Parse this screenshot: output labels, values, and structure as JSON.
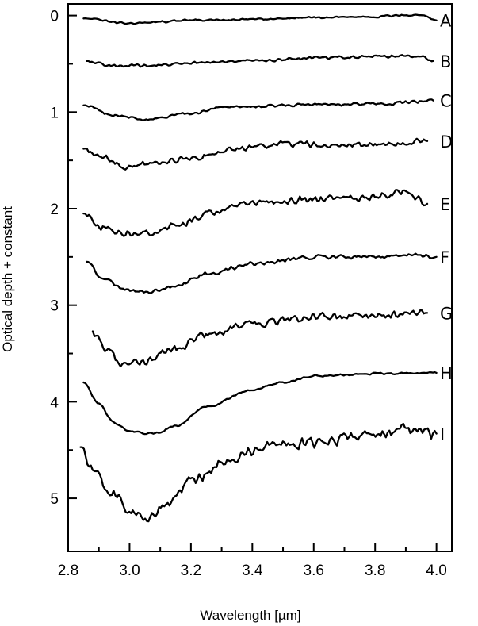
{
  "chart_data": {
    "type": "line",
    "title": "",
    "xlabel": "Wavelength [µm]",
    "ylabel": "Optical depth + constant",
    "xlim": [
      2.8,
      4.05
    ],
    "ylim": [
      5.55,
      -0.12
    ],
    "y_inverted": true,
    "x_ticks": [
      2.8,
      3.0,
      3.2,
      3.4,
      3.6,
      3.8,
      4.0
    ],
    "x_tick_labels": [
      "2.8",
      "3.0",
      "3.2",
      "3.4",
      "3.6",
      "3.8",
      "4.0"
    ],
    "y_ticks": [
      0,
      1,
      2,
      3,
      4,
      5
    ],
    "y_tick_labels": [
      "0",
      "1",
      "2",
      "3",
      "4",
      "5"
    ],
    "grid": false,
    "legend": "none",
    "series": [
      {
        "name": "A",
        "noise": 0.012,
        "points": [
          [
            2.85,
            0.03
          ],
          [
            3.0,
            0.08
          ],
          [
            3.2,
            0.05
          ],
          [
            3.4,
            0.04
          ],
          [
            3.6,
            0.02
          ],
          [
            3.8,
            0.01
          ],
          [
            3.95,
            -0.01
          ],
          [
            4.0,
            0.05
          ]
        ]
      },
      {
        "name": "B",
        "noise": 0.018,
        "points": [
          [
            2.86,
            0.47
          ],
          [
            2.95,
            0.52
          ],
          [
            3.05,
            0.52
          ],
          [
            3.2,
            0.49
          ],
          [
            3.4,
            0.47
          ],
          [
            3.6,
            0.44
          ],
          [
            3.8,
            0.42
          ],
          [
            3.95,
            0.42
          ],
          [
            3.99,
            0.47
          ]
        ]
      },
      {
        "name": "C",
        "noise": 0.018,
        "points": [
          [
            2.85,
            0.93
          ],
          [
            2.95,
            1.03
          ],
          [
            3.05,
            1.08
          ],
          [
            3.2,
            1.01
          ],
          [
            3.3,
            0.95
          ],
          [
            3.5,
            0.93
          ],
          [
            3.7,
            0.92
          ],
          [
            3.85,
            0.91
          ],
          [
            3.99,
            0.88
          ]
        ]
      },
      {
        "name": "D",
        "noise": 0.035,
        "points": [
          [
            2.85,
            1.38
          ],
          [
            2.9,
            1.45
          ],
          [
            3.0,
            1.57
          ],
          [
            3.08,
            1.53
          ],
          [
            3.2,
            1.47
          ],
          [
            3.35,
            1.38
          ],
          [
            3.5,
            1.33
          ],
          [
            3.7,
            1.34
          ],
          [
            3.85,
            1.33
          ],
          [
            3.97,
            1.3
          ]
        ]
      },
      {
        "name": "E",
        "noise": 0.045,
        "points": [
          [
            2.85,
            2.05
          ],
          [
            2.9,
            2.18
          ],
          [
            2.95,
            2.25
          ],
          [
            3.05,
            2.25
          ],
          [
            3.15,
            2.18
          ],
          [
            3.25,
            2.05
          ],
          [
            3.4,
            1.93
          ],
          [
            3.6,
            1.9
          ],
          [
            3.8,
            1.88
          ],
          [
            3.9,
            1.82
          ],
          [
            3.97,
            1.95
          ]
        ]
      },
      {
        "name": "F",
        "noise": 0.025,
        "points": [
          [
            2.86,
            2.55
          ],
          [
            2.92,
            2.75
          ],
          [
            3.0,
            2.85
          ],
          [
            3.08,
            2.85
          ],
          [
            3.15,
            2.8
          ],
          [
            3.25,
            2.68
          ],
          [
            3.4,
            2.57
          ],
          [
            3.6,
            2.5
          ],
          [
            3.8,
            2.5
          ],
          [
            3.95,
            2.48
          ],
          [
            4.0,
            2.5
          ]
        ]
      },
      {
        "name": "G",
        "noise": 0.05,
        "points": [
          [
            2.88,
            3.27
          ],
          [
            2.93,
            3.47
          ],
          [
            2.98,
            3.63
          ],
          [
            3.05,
            3.58
          ],
          [
            3.15,
            3.45
          ],
          [
            3.25,
            3.3
          ],
          [
            3.4,
            3.2
          ],
          [
            3.6,
            3.12
          ],
          [
            3.8,
            3.1
          ],
          [
            3.97,
            3.08
          ]
        ]
      },
      {
        "name": "H",
        "noise": 0.012,
        "points": [
          [
            2.85,
            3.8
          ],
          [
            2.9,
            4.02
          ],
          [
            2.95,
            4.22
          ],
          [
            3.0,
            4.31
          ],
          [
            3.08,
            4.33
          ],
          [
            3.15,
            4.25
          ],
          [
            3.25,
            4.05
          ],
          [
            3.4,
            3.88
          ],
          [
            3.5,
            3.8
          ],
          [
            3.6,
            3.73
          ],
          [
            3.8,
            3.71
          ],
          [
            4.0,
            3.7
          ]
        ]
      },
      {
        "name": "I",
        "noise": 0.07,
        "points": [
          [
            2.84,
            4.47
          ],
          [
            2.88,
            4.7
          ],
          [
            2.93,
            4.92
          ],
          [
            3.0,
            5.12
          ],
          [
            3.05,
            5.22
          ],
          [
            3.12,
            5.07
          ],
          [
            3.2,
            4.83
          ],
          [
            3.3,
            4.62
          ],
          [
            3.45,
            4.45
          ],
          [
            3.6,
            4.42
          ],
          [
            3.8,
            4.33
          ],
          [
            3.95,
            4.28
          ],
          [
            4.0,
            4.33
          ]
        ]
      }
    ]
  }
}
